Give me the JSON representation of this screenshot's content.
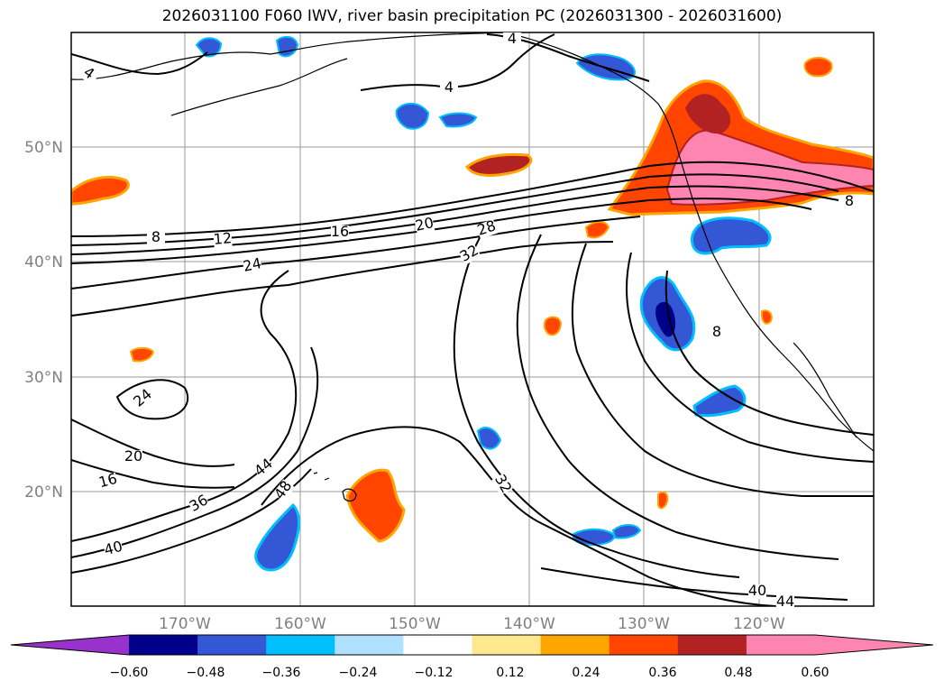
{
  "title": "2026031100 F060 IWV, river basin precipitation PC (2026031300 - 2026031600)",
  "map": {
    "lat_labels": [
      "50°N",
      "40°N",
      "30°N",
      "20°N"
    ],
    "lon_labels": [
      "170°W",
      "160°W",
      "150°W",
      "140°W",
      "130°W",
      "120°W"
    ],
    "iwv_contour_labels": [
      "4",
      "4",
      "4",
      "8",
      "12",
      "16",
      "20",
      "28",
      "32",
      "24",
      "24",
      "20",
      "16",
      "36",
      "40",
      "44",
      "48",
      "32",
      "8",
      "8",
      "40",
      "44"
    ]
  },
  "colorbar": {
    "tick_labels": [
      "−0.60",
      "−0.48",
      "−0.36",
      "−0.24",
      "−0.12",
      "0.12",
      "0.24",
      "0.36",
      "0.48",
      "0.60"
    ],
    "colors": [
      "#9932cc",
      "#00008b",
      "#3457d5",
      "#00bfff",
      "#b0e2ff",
      "#ffffff",
      "#ffe88f",
      "#ffa500",
      "#ff4500",
      "#b22222",
      "#ff85b1",
      "#ff85b1"
    ]
  }
}
